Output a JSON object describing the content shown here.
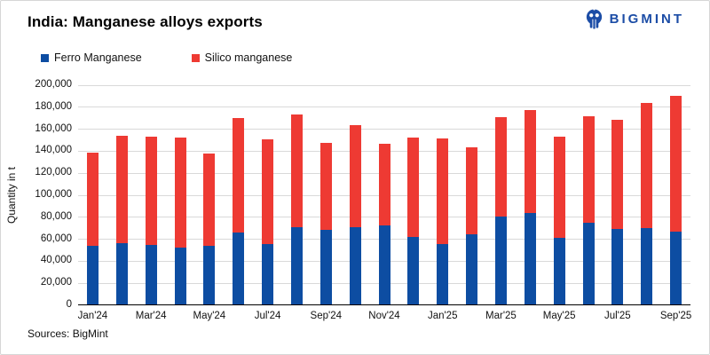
{
  "header": {
    "title": "India: Manganese alloys exports",
    "logo_text": "BIGMINT",
    "logo_color": "#1c4da6"
  },
  "footer": {
    "sources": "Sources: BigMint"
  },
  "colors": {
    "ferro_blue": "#0d4da2",
    "silico_red": "#ee3a33",
    "gridline": "#d9d9d9",
    "axis": "#000000"
  },
  "chart_data": {
    "type": "bar",
    "stacked": true,
    "title": "India: Manganese alloys exports",
    "xlabel": "",
    "ylabel": "Quantity in t",
    "ylim": [
      0,
      200000
    ],
    "ytick_step": 20000,
    "grid": true,
    "legend_position": "top-left",
    "categories": [
      "Jan'24",
      "Feb'24",
      "Mar'24",
      "Apr'24",
      "May'24",
      "Jun'24",
      "Jul'24",
      "Aug'24",
      "Sep'24",
      "Oct'24",
      "Nov'24",
      "Dec'24",
      "Jan'25",
      "Feb'25",
      "Mar'25",
      "Apr'25",
      "May'25",
      "Jun'25",
      "Jul'25",
      "Aug'25",
      "Sep'25"
    ],
    "xtick_labels": [
      "Jan'24",
      "Mar'24",
      "May'24",
      "Jul'24",
      "Sep'24",
      "Nov'24",
      "Jan'25",
      "Mar'25",
      "May'25",
      "Jul'25",
      "Sep'25"
    ],
    "series": [
      {
        "name": "Ferro Manganese",
        "color": "#0d4da2",
        "values": [
          53000,
          56000,
          54000,
          52000,
          53000,
          65500,
          55000,
          70500,
          68000,
          70000,
          71500,
          61000,
          54500,
          64000,
          79500,
          83000,
          60500,
          74000,
          68500,
          69000,
          66000
        ]
      },
      {
        "name": "Silico manganese",
        "color": "#ee3a33",
        "values": [
          85000,
          97000,
          98500,
          99500,
          84000,
          103500,
          95000,
          102000,
          79000,
          93000,
          74500,
          90500,
          96000,
          79000,
          91000,
          93500,
          92000,
          97000,
          99500,
          114000,
          123500
        ]
      }
    ],
    "stack_totals": [
      138000,
      153000,
      152500,
      151500,
      137000,
      169000,
      150000,
      172500,
      147000,
      163000,
      146000,
      151500,
      150500,
      143000,
      170500,
      176500,
      152500,
      171000,
      168000,
      183000,
      189500
    ]
  }
}
